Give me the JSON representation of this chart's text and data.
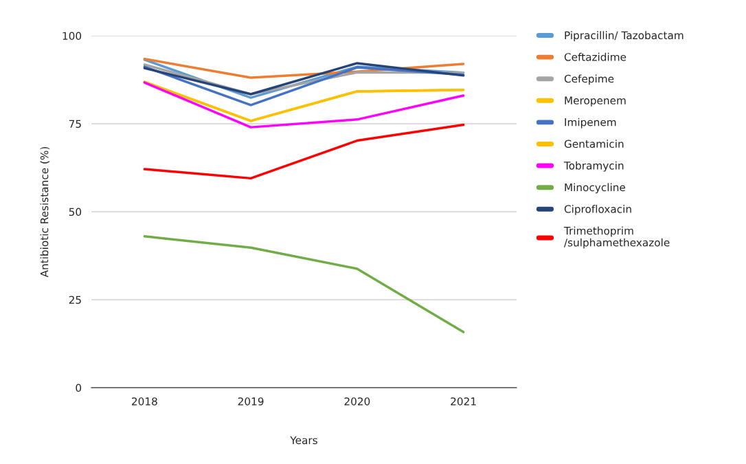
{
  "chart_data": {
    "type": "line",
    "xlabel": "Years",
    "ylabel": "Antibiotic Resistance (%)",
    "categories": [
      "2018",
      "2019",
      "2020",
      "2021"
    ],
    "ylim": [
      0,
      100
    ],
    "yticks": [
      0,
      25,
      50,
      75,
      100
    ],
    "grid": "y",
    "legend": "right",
    "line_style": "solid",
    "marker": "none",
    "series": [
      {
        "name": "Pipracillin/ Tazobactam",
        "color": "#5b9bd5",
        "values": [
          93.2,
          82.4,
          91.2,
          89.5
        ]
      },
      {
        "name": "Ceftazidime",
        "color": "#ed7d31",
        "values": [
          93.4,
          88.1,
          89.8,
          92.0
        ]
      },
      {
        "name": "Cefepime",
        "color": "#a5a5a5",
        "values": [
          91.8,
          83.4,
          89.6,
          89.5
        ]
      },
      {
        "name": "Meropenem",
        "color": "#ffc000",
        "values": [
          86.9,
          75.8,
          84.2,
          84.6
        ]
      },
      {
        "name": "Imipenem",
        "color": "#4472c4",
        "values": [
          91.2,
          80.3,
          91.0,
          88.9
        ]
      },
      {
        "name": "Gentamicin",
        "color": "#ffc000",
        "values": [
          86.9,
          75.8,
          84.2,
          84.6
        ]
      },
      {
        "name": "Tobramycin",
        "color": "#ff00ff",
        "values": [
          86.7,
          74.0,
          76.2,
          83.0
        ]
      },
      {
        "name": "Minocycline",
        "color": "#70ad47",
        "values": [
          43.0,
          39.8,
          33.8,
          15.8
        ]
      },
      {
        "name": "Ciprofloxacin",
        "color": "#264478",
        "values": [
          90.8,
          83.4,
          92.2,
          88.7
        ]
      },
      {
        "name": "Trimethoprim\n/sulphamethexazole",
        "color": "#ff0000",
        "values": [
          62.1,
          59.5,
          70.2,
          74.7
        ]
      }
    ]
  }
}
